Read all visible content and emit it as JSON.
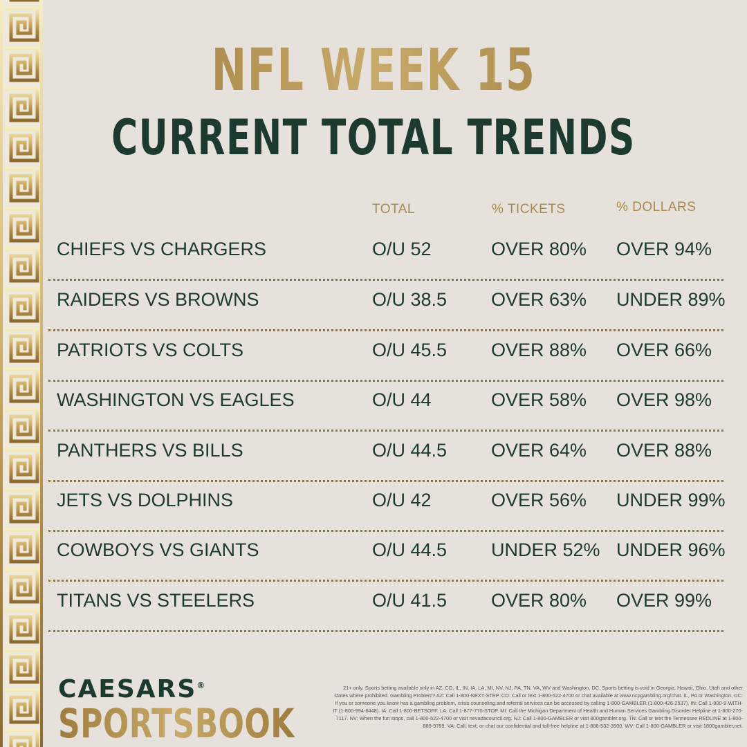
{
  "header": {
    "title": "NFL WEEK 15",
    "subtitle": "CURRENT TOTAL TRENDS"
  },
  "columns": {
    "total": "TOTAL",
    "tickets": "% TICKETS",
    "dollars": "% DOLLARS"
  },
  "rows": [
    {
      "matchup": "CHIEFS VS CHARGERS",
      "total": "O/U 52",
      "tickets": "OVER 80%",
      "dollars": "OVER 94%"
    },
    {
      "matchup": "RAIDERS VS BROWNS",
      "total": "O/U 38.5",
      "tickets": "OVER 63%",
      "dollars": "UNDER 89%"
    },
    {
      "matchup": "PATRIOTS VS COLTS",
      "total": "O/U 45.5",
      "tickets": "OVER 88%",
      "dollars": "OVER 66%"
    },
    {
      "matchup": "WASHINGTON VS EAGLES",
      "total": "O/U 44",
      "tickets": "OVER 58%",
      "dollars": "OVER 98%"
    },
    {
      "matchup": "PANTHERS VS BILLS",
      "total": "O/U 44.5",
      "tickets": "OVER 64%",
      "dollars": "OVER 88%"
    },
    {
      "matchup": "JETS VS DOLPHINS",
      "total": "O/U 42",
      "tickets": "OVER 56%",
      "dollars": "UNDER 99%"
    },
    {
      "matchup": "COWBOYS VS GIANTS",
      "total": "O/U 44.5",
      "tickets": "UNDER 52%",
      "dollars": "UNDER 96%"
    },
    {
      "matchup": "TITANS VS STEELERS",
      "total": "O/U 41.5",
      "tickets": "OVER 80%",
      "dollars": "OVER 99%"
    }
  ],
  "logo": {
    "top": "CAESARS",
    "registered": "®",
    "bottom": "SPORTSBOOK"
  },
  "disclaimer": "21+ only. Sports betting available only in AZ, CO, IL, IN, IA, LA, MI, NV, NJ, PA, TN, VA, WV and Washington, DC. Sports betting is void in Georgia, Hawaii, Ohio, Utah and other states where prohibited. Gambling Problem? AZ: Call 1-800-NEXT-STEP. CO: Call or text 1-800-522-4700 or chat available at www.ncpgambling.org/chat. IL, PA or Washington, DC: If you or someone you know has a gambling problem, crisis counseling and referral services can be accessed by calling 1-800-GAMBLER (1-800-426-2537). IN: Call 1-800-9-WITH-IT (1-800-994-8448). IA: Call 1-800-BETSOFF. LA: Call 1-877-770-STOP. MI: Call the Michigan Department of Health and Human Services Gambling Disorder Helpline at 1-800-270-7117. NV: When the fun stops, call 1-800-522-4700 or visit nevadacouncil.org. NJ: Call 1-800-GAMBLER or visit 800gambler.org. TN: Call or text the Tennessee REDLINE at 1-800-889-9789. VA: Call, text, or chat our confidential and toll-free helpline at 1-888-532-3500. WV: Call 1-800-GAMBLER or visit 1800gambler.net.",
  "colors": {
    "background": "#e6e1db",
    "gold": "#b2924f",
    "green": "#1c3a2e"
  }
}
